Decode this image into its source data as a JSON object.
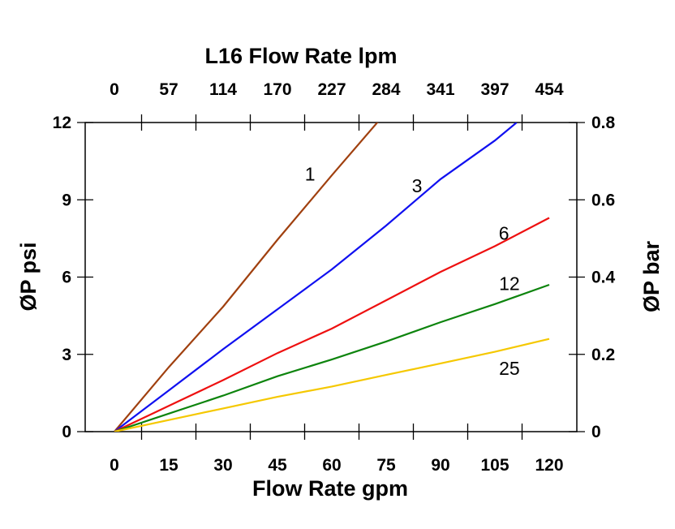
{
  "chart_data": {
    "type": "line",
    "title": "L16 Flow Rate lpm",
    "xlabel": "Flow Rate gpm",
    "ylabel": "ØP psi",
    "y2label": "ØP bar",
    "xlim": [
      -8,
      127.5
    ],
    "ylim": [
      0,
      12
    ],
    "x_ticks": [
      0,
      15,
      30,
      45,
      60,
      75,
      90,
      105,
      120
    ],
    "x_tick_labels": [
      "0",
      "15",
      "30",
      "45",
      "60",
      "75",
      "90",
      "105",
      "120"
    ],
    "x2_tick_labels": [
      "0",
      "57",
      "114",
      "170",
      "227",
      "284",
      "341",
      "397",
      "454"
    ],
    "y_ticks": [
      0,
      3,
      6,
      9,
      12
    ],
    "y_tick_labels": [
      "0",
      "3",
      "6",
      "9",
      "12"
    ],
    "y2_tick_labels": [
      "0",
      "0.2",
      "0.4",
      "0.6",
      "0.8"
    ],
    "grid": false,
    "series": [
      {
        "name": "1",
        "color": "#a0400f",
        "x": [
          0,
          15,
          30,
          45,
          60,
          75
        ],
        "y": [
          0,
          2.5,
          4.85,
          7.45,
          9.95,
          12.4
        ],
        "label_at": [
          54,
          10.0
        ]
      },
      {
        "name": "3",
        "color": "#1010f0",
        "x": [
          0,
          15,
          30,
          45,
          60,
          75,
          90,
          105,
          111
        ],
        "y": [
          0,
          1.6,
          3.2,
          4.75,
          6.3,
          8.0,
          9.8,
          11.3,
          12
        ],
        "label_at": [
          83.5,
          9.55
        ]
      },
      {
        "name": "6",
        "color": "#ee1010",
        "x": [
          0,
          15,
          30,
          45,
          60,
          75,
          90,
          105,
          120
        ],
        "y": [
          0,
          1.0,
          2.0,
          3.05,
          4.0,
          5.1,
          6.2,
          7.2,
          8.3
        ],
        "label_at": [
          107.5,
          7.7
        ]
      },
      {
        "name": "12",
        "color": "#0d840d",
        "x": [
          0,
          15,
          30,
          45,
          60,
          75,
          90,
          105,
          120
        ],
        "y": [
          0,
          0.7,
          1.4,
          2.15,
          2.8,
          3.5,
          4.25,
          4.95,
          5.7
        ],
        "label_at": [
          109,
          5.75
        ]
      },
      {
        "name": "25",
        "color": "#f5c800",
        "x": [
          0,
          15,
          30,
          45,
          60,
          75,
          90,
          105,
          120
        ],
        "y": [
          0,
          0.45,
          0.9,
          1.35,
          1.75,
          2.2,
          2.65,
          3.1,
          3.6
        ],
        "label_at": [
          109,
          2.45
        ]
      }
    ]
  }
}
